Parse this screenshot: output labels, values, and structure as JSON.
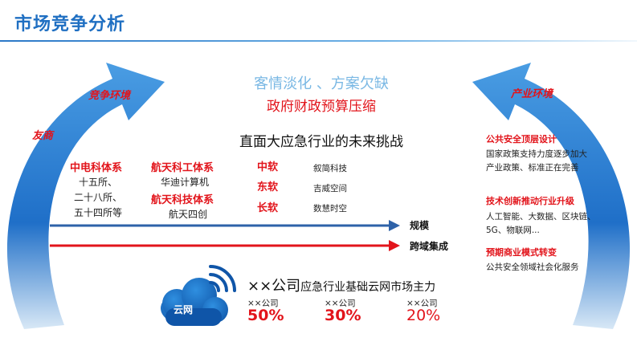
{
  "header": {
    "title": "市场竞争分析"
  },
  "top": {
    "line1": "客情淡化 、方案欠缺",
    "line2": "政府财政预算压缩",
    "line3": "直面大应急行业的未来挑战"
  },
  "left_arc": {
    "label_top": "竞争环境",
    "label_bottom": "友商"
  },
  "right_arc": {
    "label_top": "产业环境"
  },
  "competitors": {
    "group1": {
      "name": "中电科体系",
      "items": [
        "十五所、",
        "二十八所、",
        "五十四所等"
      ]
    },
    "group2": {
      "name": "航天科工体系",
      "sub": "华迪计算机"
    },
    "group3": {
      "name": "航天科技体系",
      "sub": "航天四创"
    },
    "soft": [
      {
        "name": "中软",
        "company": "叙简科技"
      },
      {
        "name": "东软",
        "company": "吉威空间"
      },
      {
        "name": "长软",
        "company": "数慧时空"
      }
    ]
  },
  "axes": {
    "arrow1_label": "规模",
    "arrow2_label": "跨域集成"
  },
  "industry": {
    "items": [
      {
        "heading": "公共安全顶层设计",
        "lines": [
          "国家政策支持力度逐步加大",
          "产业政策、标准正在完善"
        ]
      },
      {
        "heading": "技术创新推动行业升级",
        "lines": [
          "人工智能、大数据、区块链、",
          "5G、物联网..."
        ]
      },
      {
        "heading": "预期商业模式转变",
        "lines": [
          "公共安全领域社会化服务"
        ]
      }
    ]
  },
  "bottom": {
    "cloud_label": "云网",
    "prefix": "××公司",
    "text": "应急行业基础云网市场主力",
    "shares": [
      {
        "label": "××公司",
        "value": "50%"
      },
      {
        "label": "××公司",
        "value": "30%"
      },
      {
        "label": "××公司",
        "value": "20%"
      }
    ]
  },
  "colors": {
    "title_blue": "#1f6fc2",
    "accent_red": "#e2141b",
    "arc_blue": "#2a7fd4",
    "line_blue": "#2e62a8"
  }
}
